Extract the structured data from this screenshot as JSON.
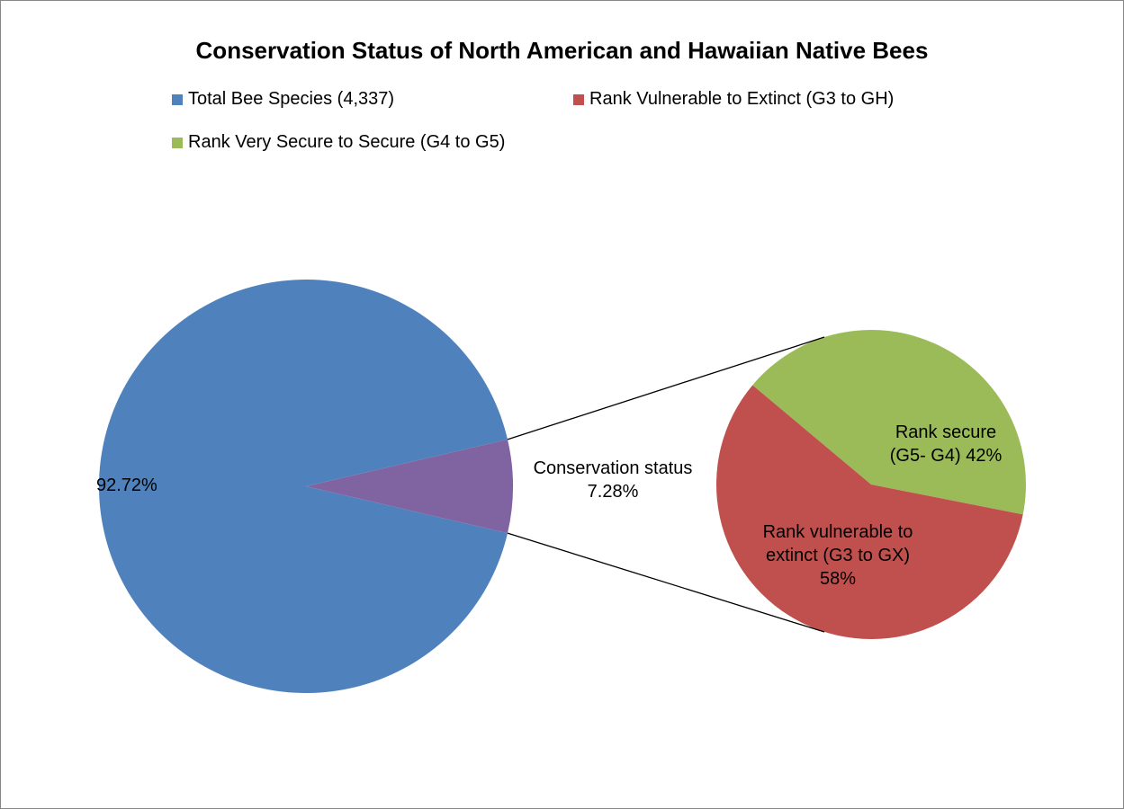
{
  "chart_data": {
    "type": "pie",
    "title": "Conservation Status of North American and Hawaiian Native Bees",
    "legend": {
      "placement": "top",
      "entries": [
        {
          "label": "Total Bee Species (4,337)",
          "color": "#4f81bd"
        },
        {
          "label": "Rank Vulnerable to Extinct (G3 to GH)",
          "color": "#c0504d"
        },
        {
          "label": "Rank Very Secure to Secure (G4 to G5)",
          "color": "#9bbb59"
        }
      ]
    },
    "main_pie": {
      "slices": [
        {
          "name": "Total Bee Species",
          "value": 92.72,
          "label": "92.72%",
          "color": "#4f81bd"
        },
        {
          "name": "Conservation status",
          "value": 7.28,
          "label_line1": "Conservation status",
          "label_line2": "7.28%",
          "color": "#8064a2"
        }
      ]
    },
    "sub_pie": {
      "slices": [
        {
          "name": "Rank secure",
          "value": 42,
          "label_lines": [
            "Rank secure",
            "(G5- G4) 42%"
          ],
          "color": "#9bbb59"
        },
        {
          "name": "Rank vulnerable to extinct",
          "value": 58,
          "label_lines": [
            "Rank vulnerable to",
            "extinct (G3 to GX)",
            "58%"
          ],
          "color": "#c0504d"
        }
      ]
    }
  }
}
